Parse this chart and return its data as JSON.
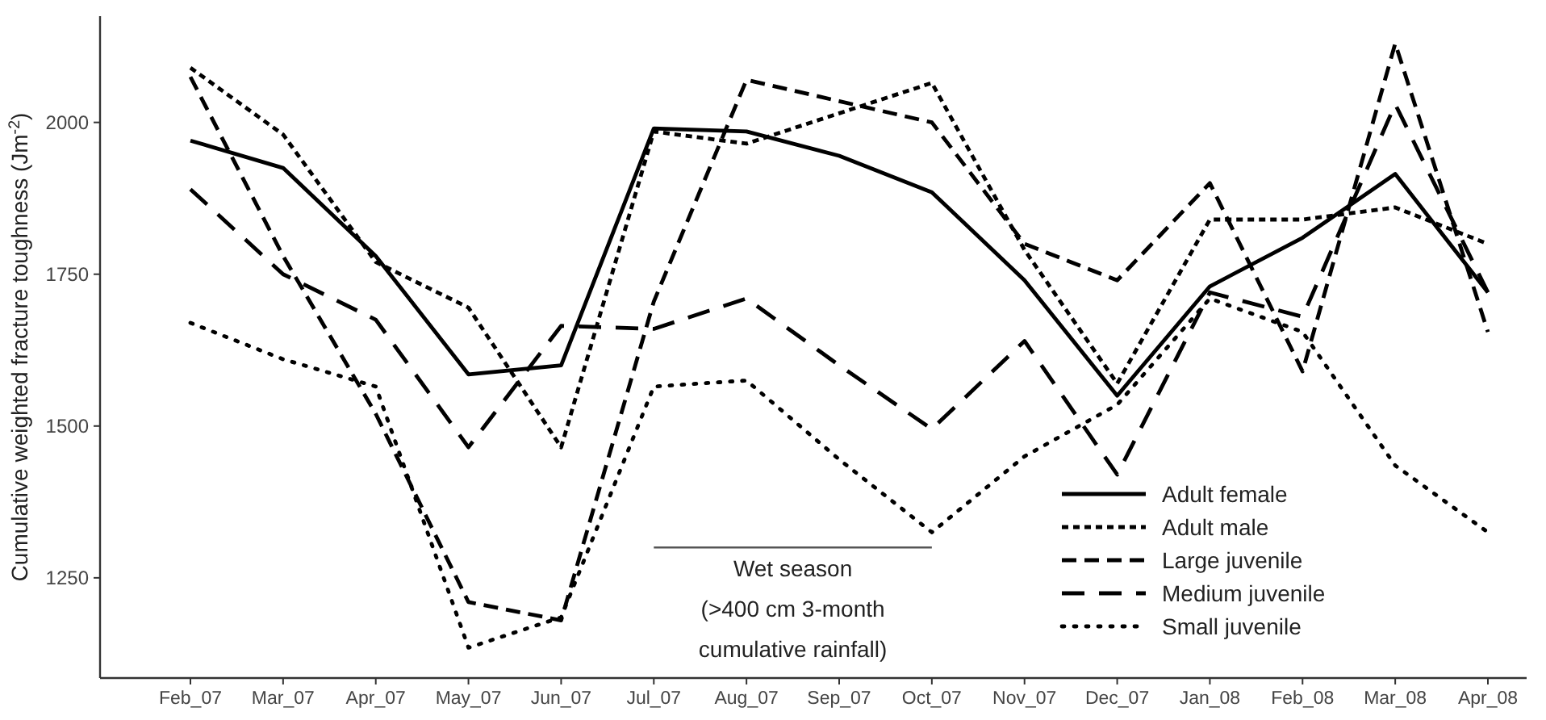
{
  "chart_data": {
    "type": "line",
    "ylabel": "Cumulative weighted fracture toughness (Jm$^{-2}$)",
    "categories": [
      "Feb_07",
      "Mar_07",
      "Apr_07",
      "May_07",
      "Jun_07",
      "Jul_07",
      "Aug_07",
      "Sep_07",
      "Oct_07",
      "Nov_07",
      "Dec_07",
      "Jan_08",
      "Feb_08",
      "Mar_08",
      "Apr_08"
    ],
    "series": [
      {
        "name": "Adult female",
        "color": "#000000",
        "line_style": "solid",
        "values": [
          1970,
          1925,
          1780,
          1585,
          1600,
          1990,
          1985,
          1945,
          1885,
          1740,
          1550,
          1730,
          1810,
          1915,
          1720
        ]
      },
      {
        "name": "Adult male",
        "color": "#000000",
        "line_style": "dashed",
        "values": [
          2090,
          1980,
          1770,
          1695,
          1465,
          1985,
          1965,
          2015,
          2065,
          1790,
          1570,
          1840,
          1840,
          1860,
          1800
        ]
      },
      {
        "name": "Large juvenile",
        "color": "#000000",
        "line_style": "dashed",
        "values": [
          2075,
          1780,
          1520,
          1210,
          1180,
          1705,
          2070,
          2035,
          2000,
          1800,
          1740,
          1900,
          1590,
          2130,
          1655
        ]
      },
      {
        "name": "Medium juvenile",
        "color": "#000000",
        "line_style": "dashed",
        "values": [
          1890,
          1750,
          1675,
          1465,
          1665,
          1660,
          1710,
          1600,
          1495,
          1640,
          1420,
          1720,
          1680,
          2030,
          1720
        ]
      },
      {
        "name": "Small juvenile",
        "color": "#000000",
        "line_style": "dotted",
        "values": [
          1670,
          1610,
          1565,
          1135,
          1185,
          1565,
          1575,
          1445,
          1325,
          1450,
          1535,
          1710,
          1655,
          1435,
          1325
        ]
      }
    ],
    "ylim": [
      1085,
      2175
    ],
    "yticks": [
      1250,
      1500,
      1750,
      2000
    ],
    "grid": false,
    "legend": "bottom right",
    "annotations": [
      "Wet season\n(>400 cm 3-month\ncumulative rainfall)"
    ]
  }
}
